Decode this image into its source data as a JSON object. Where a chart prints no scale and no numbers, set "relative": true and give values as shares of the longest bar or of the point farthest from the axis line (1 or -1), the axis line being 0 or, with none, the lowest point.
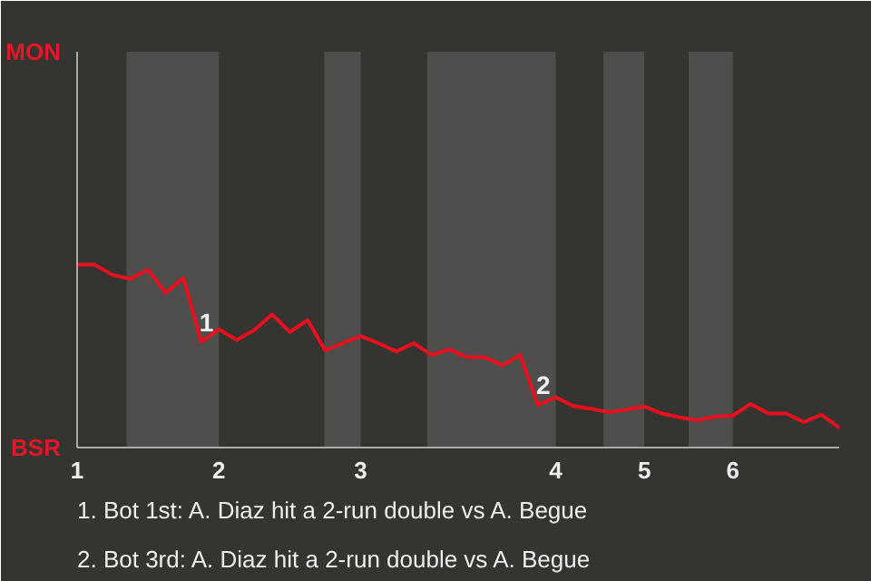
{
  "chart_data": {
    "type": "line",
    "relative": true,
    "categories": [
      "1",
      null,
      null,
      null,
      null,
      null,
      null,
      null,
      "2",
      null,
      null,
      null,
      null,
      null,
      null,
      null,
      "3",
      null,
      null,
      null,
      null,
      null,
      null,
      null,
      null,
      null,
      null,
      "4",
      null,
      null,
      null,
      null,
      "5",
      null,
      null,
      null,
      null,
      "6",
      null,
      null,
      null,
      null,
      null,
      null
    ],
    "marker": "none",
    "line_style": "solid",
    "series": [
      {
        "color": "#e8101e",
        "values": [
          1,
          1,
          0.944,
          0.922,
          0.972,
          0.846,
          0.929,
          0.578,
          0.647,
          0.589,
          0.643,
          0.729,
          0.632,
          0.697,
          0.532,
          0.571,
          0.61,
          0.571,
          0.526,
          0.571,
          0.506,
          0.537,
          0.494,
          0.494,
          0.45,
          0.506,
          0.232,
          0.275,
          0.227,
          0.212,
          0.193,
          0.208,
          0.225,
          0.186,
          0.165,
          0.149,
          0.169,
          0.175,
          0.238,
          0.186,
          0.186,
          0.139,
          0.18,
          0.108
        ]
      }
    ],
    "annotations": [
      {
        "text": "1",
        "y": 0.578
      },
      {
        "text": "2",
        "y": 0.232
      },
      "MON",
      "BSR",
      "1. Bot 1st: A. Diaz hit a 2-run double vs A. Begue",
      "2. Bot 3rd: A. Diaz hit a 2-run double vs A. Begue"
    ]
  }
}
